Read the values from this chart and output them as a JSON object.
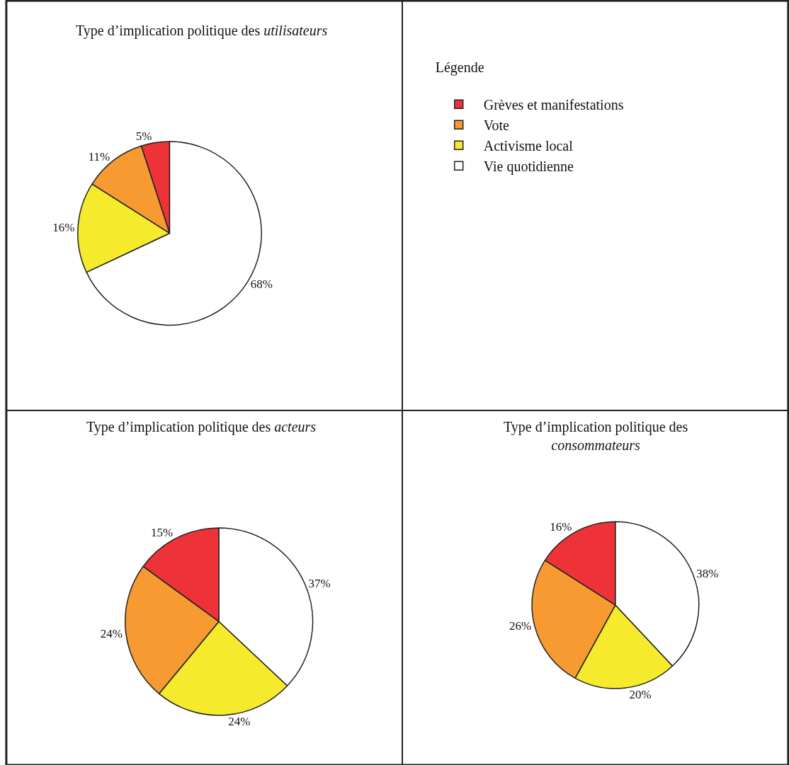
{
  "chart_data": [
    {
      "type": "pie",
      "title": "Type d’implication politique des utilisateurs",
      "legend": "right",
      "legend_title": "Légende",
      "categories": [
        "Grèves et manifestations",
        "Vote",
        "Activisme local",
        "Vie quotidienne"
      ],
      "values": [
        5,
        11,
        16,
        68
      ],
      "value_labels": [
        "5%",
        "11%",
        "16%",
        "68%"
      ],
      "colors": [
        "#ee3338",
        "#f79a32",
        "#f5eb2c",
        "#ffffff"
      ]
    },
    {
      "type": "pie",
      "title": "Type d’implication politique des acteurs",
      "categories": [
        null,
        null,
        null,
        null
      ],
      "values": [
        15,
        24,
        24,
        37
      ],
      "value_labels": [
        "15%",
        "24%",
        "24%",
        "37%"
      ],
      "colors": [
        "#ee3338",
        "#f79a32",
        "#f5eb2c",
        "#ffffff"
      ]
    },
    {
      "type": "pie",
      "title": "Type d’implication politique des consommateurs",
      "categories": [
        null,
        null,
        null,
        null
      ],
      "values": [
        16,
        26,
        20,
        38
      ],
      "value_labels": [
        "16%",
        "26%",
        "20%",
        "38%"
      ],
      "colors": [
        "#ee3338",
        "#f79a32",
        "#f5eb2c",
        "#ffffff"
      ]
    }
  ]
}
